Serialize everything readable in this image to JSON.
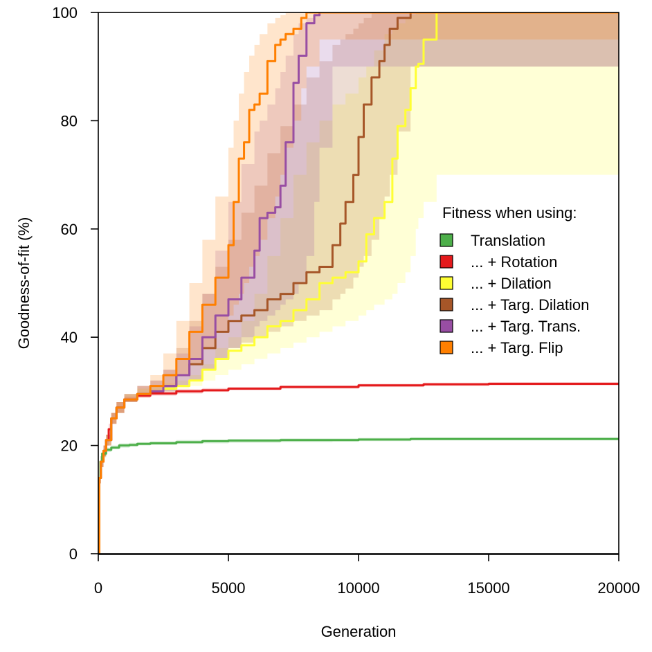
{
  "chart_data": {
    "type": "line",
    "title": "",
    "xlabel": "Generation",
    "ylabel": "Goodness-of-fit (%)",
    "xlim": [
      0,
      20000
    ],
    "ylim": [
      0,
      100
    ],
    "x_ticks": [
      0,
      5000,
      10000,
      15000,
      20000
    ],
    "y_ticks": [
      0,
      20,
      40,
      60,
      80,
      100
    ],
    "x_tick_labels": [
      "0",
      "5000",
      "10000",
      "15000",
      "20000"
    ],
    "y_tick_labels": [
      "0",
      "20",
      "40",
      "60",
      "80",
      "100"
    ],
    "grid": false,
    "legend": {
      "title": "Fitness when using:",
      "placement": "right",
      "entries": [
        "Translation",
        "... + Rotation",
        "... + Dilation",
        "... + Targ. Dilation",
        "... + Targ. Trans.",
        "... + Targ. Flip"
      ]
    },
    "series": [
      {
        "name": "Translation",
        "color": "#4daf4a",
        "x": [
          0,
          40,
          80,
          150,
          300,
          500,
          800,
          1200,
          1500,
          2000,
          3000,
          4000,
          5000,
          7000,
          9000,
          10000,
          12000,
          15000,
          20000
        ],
        "values": [
          0,
          14,
          17,
          18.5,
          19.2,
          19.6,
          20,
          20.1,
          20.3,
          20.4,
          20.6,
          20.8,
          20.9,
          21,
          21,
          21.1,
          21.2,
          21.2,
          21.2
        ],
        "lower": [
          0,
          13,
          16,
          17.8,
          18.8,
          19.3,
          19.6,
          19.8,
          20,
          20.1,
          20.3,
          20.4,
          20.5,
          20.6,
          20.7,
          20.8,
          20.9,
          20.9,
          21
        ],
        "upper": [
          0,
          15,
          18,
          19.2,
          19.6,
          20,
          20.4,
          20.5,
          20.6,
          20.8,
          21,
          21.1,
          21.2,
          21.3,
          21.3,
          21.4,
          21.5,
          21.5,
          21.5
        ]
      },
      {
        "name": "... + Rotation",
        "color": "#e41a1c",
        "x": [
          0,
          40,
          100,
          200,
          300,
          400,
          500,
          700,
          1000,
          1500,
          2000,
          3000,
          4000,
          5000,
          7000,
          10000,
          12500,
          15000,
          20000
        ],
        "values": [
          0,
          14,
          17,
          19,
          21,
          23,
          25,
          27,
          28.5,
          29.2,
          29.6,
          30,
          30.2,
          30.5,
          30.8,
          31.1,
          31.3,
          31.4,
          31.5
        ],
        "lower": [
          0,
          13,
          16,
          18,
          20,
          22,
          24,
          26,
          28,
          28.8,
          29.2,
          29.6,
          29.9,
          30.2,
          30.5,
          30.8,
          31,
          31.1,
          31.2
        ],
        "upper": [
          0,
          15,
          18,
          20,
          22,
          24,
          26,
          28,
          29,
          29.6,
          30,
          30.4,
          30.6,
          30.8,
          31.1,
          31.4,
          31.6,
          31.7,
          31.8
        ]
      },
      {
        "name": "... + Dilation",
        "color": "#ffff33",
        "x": [
          0,
          40,
          100,
          200,
          300,
          500,
          700,
          1000,
          1500,
          2000,
          2500,
          3000,
          3500,
          4000,
          4500,
          5000,
          5500,
          6000,
          6500,
          7000,
          7500,
          8000,
          8500,
          9000,
          9500,
          10000,
          10300,
          10600,
          11000,
          11300,
          11500,
          11800,
          12000,
          12200,
          12300,
          12500,
          13000,
          20000
        ],
        "values": [
          0,
          14,
          17,
          19,
          21,
          25,
          27,
          28.5,
          29.5,
          30,
          30.5,
          31,
          32,
          34,
          36,
          37.5,
          38.5,
          40,
          42,
          43,
          45,
          47,
          50,
          51,
          52,
          54,
          59,
          62,
          65,
          73,
          79,
          82,
          86,
          90,
          90.5,
          95,
          100,
          100
        ],
        "lower": [
          0,
          13,
          16,
          18,
          20,
          24,
          26,
          28,
          29,
          29.5,
          30,
          30.5,
          31,
          32,
          33,
          34,
          35,
          36,
          37,
          38,
          39,
          40,
          41,
          42,
          43,
          44,
          45,
          46,
          47,
          48,
          50,
          52,
          55,
          60,
          62,
          65,
          70,
          100
        ],
        "upper": [
          0,
          15,
          18,
          20,
          22,
          26,
          28,
          29.5,
          30.5,
          31,
          31.5,
          32,
          33,
          35,
          38,
          40,
          43,
          48,
          55,
          62,
          70,
          76,
          80,
          83,
          85,
          88,
          90,
          93,
          96,
          97,
          98,
          99,
          99.5,
          100,
          100,
          100,
          100,
          100
        ]
      },
      {
        "name": "... + Targ. Dilation",
        "color": "#a65628",
        "x": [
          0,
          40,
          100,
          200,
          300,
          500,
          700,
          1000,
          1500,
          2000,
          2500,
          3000,
          3500,
          4000,
          4500,
          5000,
          5500,
          6000,
          6500,
          7000,
          7500,
          8000,
          8500,
          9000,
          9300,
          9500,
          9800,
          10000,
          10200,
          10500,
          10800,
          11000,
          11200,
          11500,
          12000,
          20000
        ],
        "values": [
          0,
          14,
          17,
          19,
          21,
          25,
          27,
          28.5,
          29.5,
          30,
          31,
          33,
          35,
          38,
          41,
          43,
          44,
          45,
          47,
          48,
          50,
          52,
          53,
          57,
          61,
          65,
          70,
          77,
          83,
          88,
          91,
          94,
          97,
          99,
          100,
          100
        ],
        "lower": [
          0,
          13,
          16,
          18,
          20,
          24,
          26,
          28,
          29,
          29.5,
          30,
          31,
          32,
          34,
          36,
          38,
          39,
          40,
          41,
          42,
          43,
          44,
          45,
          47,
          48,
          49,
          51,
          53,
          55,
          58,
          62,
          66,
          70,
          78,
          90,
          100
        ],
        "upper": [
          0,
          15,
          18,
          20,
          22,
          26,
          28,
          29.5,
          31,
          32,
          34,
          38,
          43,
          48,
          53,
          58,
          63,
          68,
          74,
          79,
          83,
          88,
          91,
          94,
          95,
          96,
          97,
          98,
          99,
          100,
          100,
          100,
          100,
          100,
          100,
          100
        ]
      },
      {
        "name": "... + Targ. Trans.",
        "color": "#984ea3",
        "x": [
          0,
          40,
          100,
          200,
          300,
          500,
          700,
          1000,
          1500,
          2000,
          2500,
          3000,
          3500,
          4000,
          4500,
          5000,
          5500,
          6000,
          6200,
          6500,
          6800,
          7000,
          7200,
          7500,
          7700,
          8000,
          8300,
          8500,
          9000,
          20000
        ],
        "values": [
          0,
          14,
          17,
          19,
          21,
          25,
          27,
          28.5,
          29.5,
          30,
          31,
          33,
          36,
          40,
          44,
          47,
          51,
          56,
          62,
          63,
          64,
          68,
          76,
          87,
          92,
          98,
          99.5,
          100,
          100,
          100
        ],
        "lower": [
          0,
          13,
          16,
          18,
          20,
          24,
          26,
          28,
          29,
          29.5,
          30,
          31,
          32,
          34,
          36,
          38,
          40,
          42,
          43,
          44,
          45,
          46,
          47,
          48,
          50,
          55,
          65,
          75,
          90,
          100
        ],
        "upper": [
          0,
          15,
          18,
          20,
          22,
          26,
          28,
          29.5,
          31,
          32,
          34,
          37,
          42,
          48,
          56,
          65,
          72,
          78,
          80,
          83,
          86,
          89,
          92,
          96,
          98,
          99,
          100,
          100,
          100,
          100
        ]
      },
      {
        "name": "... + Targ. Flip",
        "color": "#ff7f00",
        "x": [
          0,
          40,
          100,
          200,
          300,
          500,
          700,
          1000,
          1500,
          2000,
          2500,
          3000,
          3500,
          4000,
          4500,
          5000,
          5200,
          5400,
          5600,
          5800,
          6000,
          6200,
          6500,
          6800,
          7000,
          7200,
          7500,
          7800,
          8000,
          8500,
          20000
        ],
        "values": [
          0,
          14,
          17,
          19,
          21,
          25,
          27,
          28.5,
          29.5,
          31,
          33,
          36,
          41,
          46,
          51,
          57,
          65,
          73,
          76,
          82,
          83,
          85,
          91,
          94,
          95,
          96,
          97,
          99,
          100,
          100,
          100
        ],
        "lower": [
          0,
          13,
          16,
          18,
          20,
          24,
          26,
          28,
          29,
          30,
          31,
          33,
          35,
          38,
          41,
          44,
          46,
          48,
          50,
          53,
          55,
          58,
          62,
          66,
          70,
          75,
          80,
          86,
          90,
          95,
          100
        ],
        "upper": [
          0,
          15,
          18,
          20,
          22,
          26,
          28,
          29.5,
          31,
          33,
          37,
          43,
          50,
          58,
          66,
          75,
          80,
          85,
          89,
          92,
          94,
          96,
          98,
          99,
          99.5,
          100,
          100,
          100,
          100,
          100,
          100
        ]
      }
    ]
  }
}
